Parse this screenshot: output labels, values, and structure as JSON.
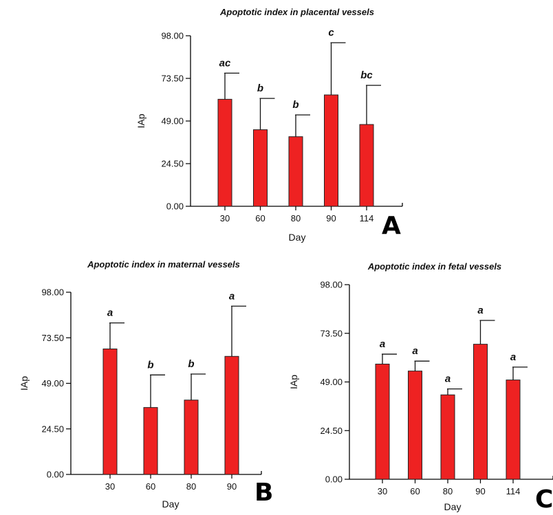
{
  "chart_data": [
    {
      "id": "A",
      "type": "bar",
      "panel_letter": "A",
      "title": "Apoptotic index in placental vessels",
      "xlabel": "Day",
      "ylabel": "IAp",
      "categories": [
        "30",
        "60",
        "80",
        "90",
        "114"
      ],
      "values": [
        61.5,
        44.0,
        40.0,
        64.0,
        47.0
      ],
      "error_upper": [
        76.5,
        62.0,
        52.5,
        94.0,
        69.5
      ],
      "significance": [
        "ac",
        "b",
        "b",
        "c",
        "bc"
      ],
      "ylim": [
        0,
        98
      ],
      "yticks": [
        "0.00",
        "24.50",
        "49.00",
        "73.50",
        "98.00"
      ],
      "bar_color": "#ee2222",
      "grid": false
    },
    {
      "id": "B",
      "type": "bar",
      "panel_letter": "B",
      "title": "Apoptotic index in maternal vessels",
      "xlabel": "Day",
      "ylabel": "IAp",
      "categories": [
        "30",
        "60",
        "80",
        "90"
      ],
      "values": [
        67.5,
        36.0,
        40.0,
        63.5
      ],
      "error_upper": [
        81.5,
        53.5,
        54.0,
        90.5
      ],
      "significance": [
        "a",
        "b",
        "b",
        "a"
      ],
      "ylim": [
        0,
        98
      ],
      "yticks": [
        "0.00",
        "24.50",
        "49.00",
        "73.50",
        "98.00"
      ],
      "bar_color": "#ee2222",
      "grid": false
    },
    {
      "id": "C",
      "type": "bar",
      "panel_letter": "C",
      "title": "Apoptotic index in fetal vessels",
      "xlabel": "Day",
      "ylabel": "IAp",
      "categories": [
        "30",
        "60",
        "80",
        "90",
        "114"
      ],
      "values": [
        58.0,
        54.5,
        42.5,
        68.0,
        50.0
      ],
      "error_upper": [
        63.0,
        59.5,
        45.5,
        80.0,
        56.5
      ],
      "significance": [
        "a",
        "a",
        "a",
        "a",
        "a"
      ],
      "ylim": [
        0,
        98
      ],
      "yticks": [
        "0.00",
        "24.50",
        "49.00",
        "73.50",
        "98.00"
      ],
      "bar_color": "#ee2222",
      "grid": false
    }
  ]
}
